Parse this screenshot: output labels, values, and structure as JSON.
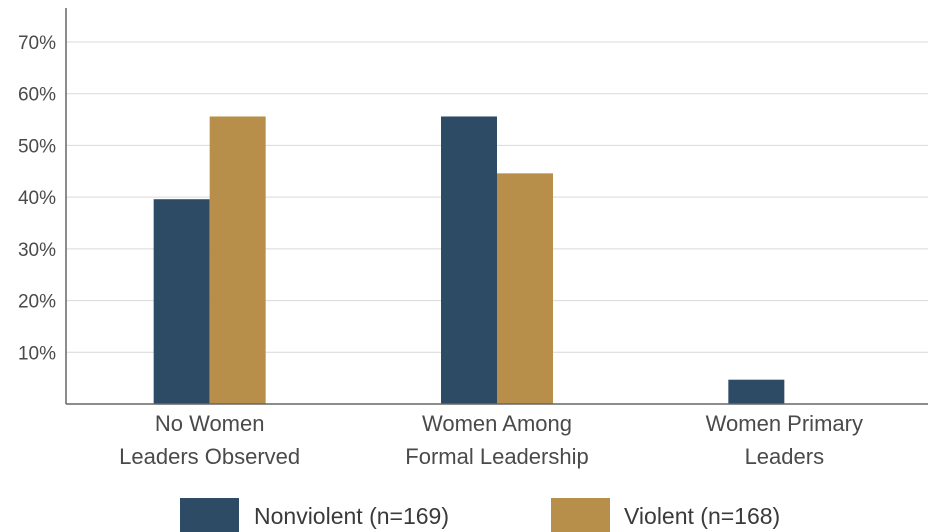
{
  "chart_data": {
    "type": "bar",
    "title": "",
    "xlabel": "",
    "ylabel": "",
    "ylim": [
      0,
      70
    ],
    "yticks": [
      10,
      20,
      30,
      40,
      50,
      60,
      70
    ],
    "ytick_labels": [
      "10%",
      "20%",
      "30%",
      "40%",
      "50%",
      "60%",
      "70%"
    ],
    "grid": true,
    "legend_position": "bottom",
    "categories": [
      [
        "No Women",
        "Leaders Observed"
      ],
      [
        "Women Among",
        "Formal Leadership"
      ],
      [
        "Women Primary",
        "Leaders"
      ]
    ],
    "series": [
      {
        "name": "Nonviolent (n=169)",
        "color": "#2e4b66",
        "values": [
          39.6,
          55.6,
          4.7
        ]
      },
      {
        "name": "Violent (n=168)",
        "color": "#b88f4a",
        "values": [
          55.6,
          44.6,
          0
        ]
      }
    ]
  }
}
